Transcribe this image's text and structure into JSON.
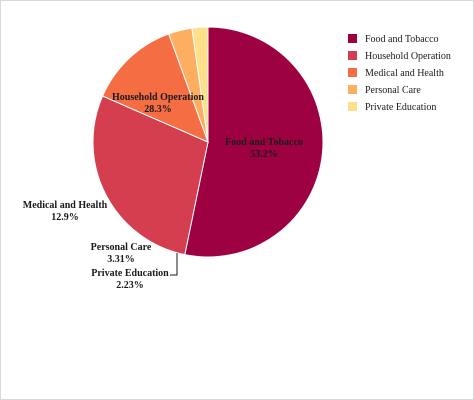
{
  "chart_data": {
    "type": "pie",
    "title": "",
    "legend_position": "top-right",
    "slices": [
      {
        "label": "Food and Tobacco",
        "value": 53.2,
        "display": "53.2%",
        "color": "#9e0142"
      },
      {
        "label": "Household Operation",
        "value": 28.3,
        "display": "28.3%",
        "color": "#d53e4f"
      },
      {
        "label": "Medical and Health",
        "value": 12.9,
        "display": "12.9%",
        "color": "#f46d43"
      },
      {
        "label": "Personal Care",
        "value": 3.31,
        "display": "3.31%",
        "color": "#fdae61"
      },
      {
        "label": "Private Education",
        "value": 2.23,
        "display": "2.23%",
        "color": "#fee08b"
      }
    ]
  }
}
